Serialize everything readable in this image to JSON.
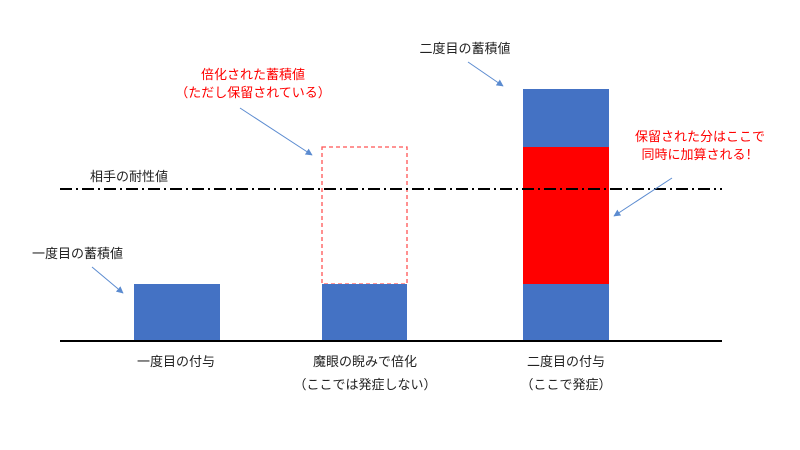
{
  "colors": {
    "bar_blue": "#4472c4",
    "bar_red": "#ff0000",
    "annotation_red": "#ff0000",
    "arrow_blue": "#5b8bd0",
    "text": "#222222",
    "axis": "#000000"
  },
  "labels": {
    "first_value": "一度目の蓄積値",
    "doubled_line1": "倍化された蓄積値",
    "doubled_line2": "（ただし保留されている）",
    "second_value": "二度目の蓄積値",
    "held_line1": "保留された分はここで",
    "held_line2": "同時に加算される！",
    "resistance": "相手の耐性値",
    "x1": "一度目の付与",
    "x2_line1": "魔眼の睨みで倍化",
    "x2_line2": "（ここでは発症しない）",
    "x3_line1": "二度目の付与",
    "x3_line2": "（ここで発症）"
  }
}
